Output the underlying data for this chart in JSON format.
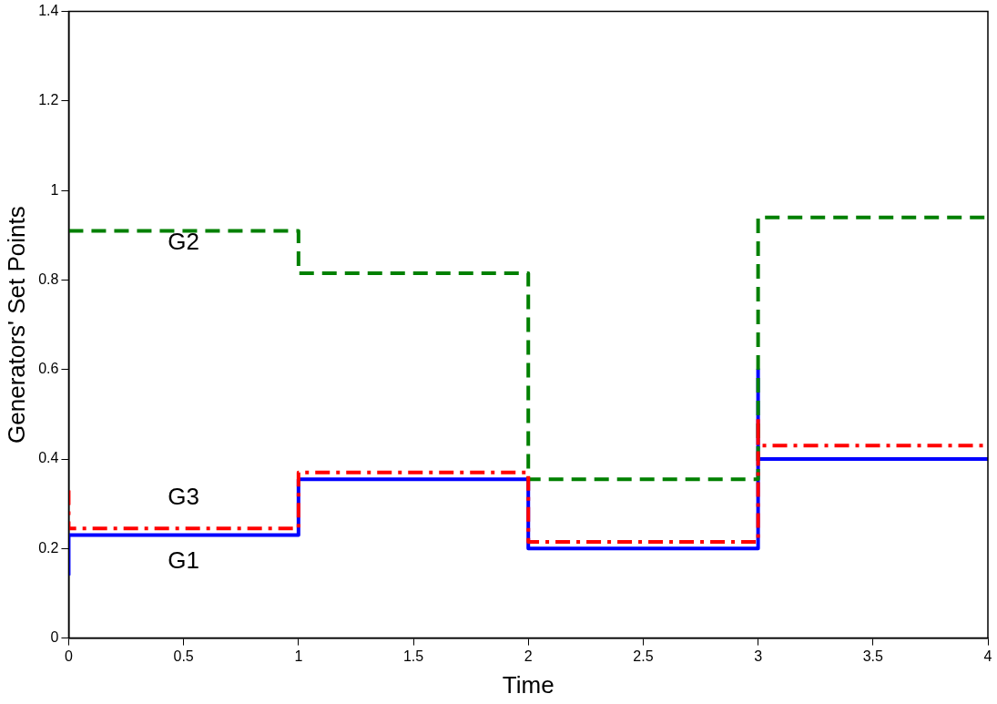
{
  "chart_data": {
    "type": "step",
    "xlabel": "Time",
    "ylabel": "Generators' Set Points",
    "xlim": [
      0,
      4
    ],
    "xticks": [
      0,
      0.5,
      1,
      1.5,
      2,
      2.5,
      3,
      3.5,
      4
    ],
    "ylim": [
      0,
      1.4
    ],
    "yticks": [
      0,
      0.2,
      0.4,
      0.6,
      0.8,
      1,
      1.2,
      1.4
    ],
    "grid": false,
    "legend": false,
    "marker": "none",
    "series": [
      {
        "name": "G1",
        "color": "#0000ff",
        "line_style": "solid",
        "x": [
          0,
          0,
          1,
          2,
          3,
          3,
          4
        ],
        "values": [
          0.14,
          0.23,
          0.355,
          0.2,
          0.6,
          0.4,
          0.4
        ]
      },
      {
        "name": "G2",
        "color": "#008000",
        "line_style": "dashed",
        "x": [
          0,
          1,
          2,
          3,
          4
        ],
        "values": [
          0.91,
          0.815,
          0.355,
          0.94,
          0.94
        ]
      },
      {
        "name": "G3",
        "color": "#ff0000",
        "line_style": "dashdot",
        "x": [
          0,
          0,
          1,
          2,
          3,
          3,
          4
        ],
        "values": [
          0.33,
          0.245,
          0.37,
          0.215,
          0.495,
          0.43,
          0.43
        ]
      }
    ]
  }
}
